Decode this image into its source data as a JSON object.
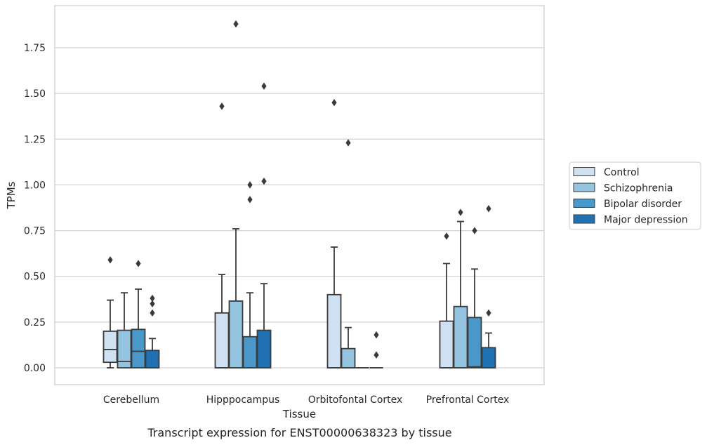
{
  "chart_data": {
    "type": "box",
    "title": "",
    "caption": "Transcript expression for ENST00000638323 by tissue",
    "xlabel": "Tissue",
    "ylabel": "TPMs",
    "ylim": [
      -0.09,
      1.98
    ],
    "yticks": [
      0.0,
      0.25,
      0.5,
      0.75,
      1.0,
      1.25,
      1.5,
      1.75
    ],
    "ytick_labels": [
      "0.00",
      "0.25",
      "0.50",
      "0.75",
      "1.00",
      "1.25",
      "1.50",
      "1.75"
    ],
    "grid": "horizontal",
    "legend_position": "right",
    "categories": [
      "Cerebellum",
      "Hipppocampus",
      "Orbitofontal Cortex",
      "Prefrontal Cortex"
    ],
    "series": [
      {
        "name": "Control",
        "color": "#d0e1f2",
        "boxes": [
          {
            "whislo": 0.0,
            "q1": 0.03,
            "med": 0.1,
            "q3": 0.2,
            "whishi": 0.37,
            "fliers": [
              0.59
            ]
          },
          {
            "whislo": 0.0,
            "q1": 0.0,
            "med": 0.0,
            "q3": 0.3,
            "whishi": 0.51,
            "fliers": [
              1.43
            ]
          },
          {
            "whislo": 0.0,
            "q1": 0.0,
            "med": 0.0,
            "q3": 0.4,
            "whishi": 0.66,
            "fliers": [
              1.45
            ]
          },
          {
            "whislo": 0.0,
            "q1": 0.0,
            "med": 0.0,
            "q3": 0.255,
            "whishi": 0.57,
            "fliers": [
              0.72
            ]
          }
        ]
      },
      {
        "name": "Schizophrenia",
        "color": "#94c4df",
        "boxes": [
          {
            "whislo": 0.0,
            "q1": 0.0,
            "med": 0.035,
            "q3": 0.205,
            "whishi": 0.41,
            "fliers": []
          },
          {
            "whislo": 0.0,
            "q1": 0.0,
            "med": 0.0,
            "q3": 0.365,
            "whishi": 0.76,
            "fliers": [
              1.88
            ]
          },
          {
            "whislo": 0.0,
            "q1": 0.0,
            "med": 0.0,
            "q3": 0.105,
            "whishi": 0.22,
            "fliers": [
              1.23
            ]
          },
          {
            "whislo": 0.0,
            "q1": 0.0,
            "med": 0.0,
            "q3": 0.335,
            "whishi": 0.8,
            "fliers": [
              0.85
            ]
          }
        ]
      },
      {
        "name": "Bipolar disorder",
        "color": "#4a98c9",
        "boxes": [
          {
            "whislo": 0.0,
            "q1": 0.0,
            "med": 0.09,
            "q3": 0.21,
            "whishi": 0.43,
            "fliers": [
              0.57
            ]
          },
          {
            "whislo": 0.0,
            "q1": 0.0,
            "med": 0.0,
            "q3": 0.17,
            "whishi": 0.41,
            "fliers": [
              0.92,
              1.0
            ]
          },
          {
            "whislo": 0.0,
            "q1": 0.0,
            "med": 0.0,
            "q3": 0.0,
            "whishi": 0.0,
            "fliers": []
          },
          {
            "whislo": 0.0,
            "q1": 0.0,
            "med": 0.005,
            "q3": 0.275,
            "whishi": 0.54,
            "fliers": [
              0.75
            ]
          }
        ]
      },
      {
        "name": "Major depression",
        "color": "#2070b4",
        "boxes": [
          {
            "whislo": 0.0,
            "q1": 0.0,
            "med": 0.0,
            "q3": 0.095,
            "whishi": 0.16,
            "fliers": [
              0.3,
              0.35,
              0.38
            ]
          },
          {
            "whislo": 0.0,
            "q1": 0.0,
            "med": 0.0,
            "q3": 0.205,
            "whishi": 0.46,
            "fliers": [
              1.02,
              1.54
            ]
          },
          {
            "whislo": 0.0,
            "q1": 0.0,
            "med": 0.0,
            "q3": 0.0,
            "whishi": 0.0,
            "fliers": [
              0.07,
              0.18
            ]
          },
          {
            "whislo": 0.0,
            "q1": 0.0,
            "med": 0.0,
            "q3": 0.11,
            "whishi": 0.19,
            "fliers": [
              0.3,
              0.87
            ]
          }
        ]
      }
    ]
  }
}
